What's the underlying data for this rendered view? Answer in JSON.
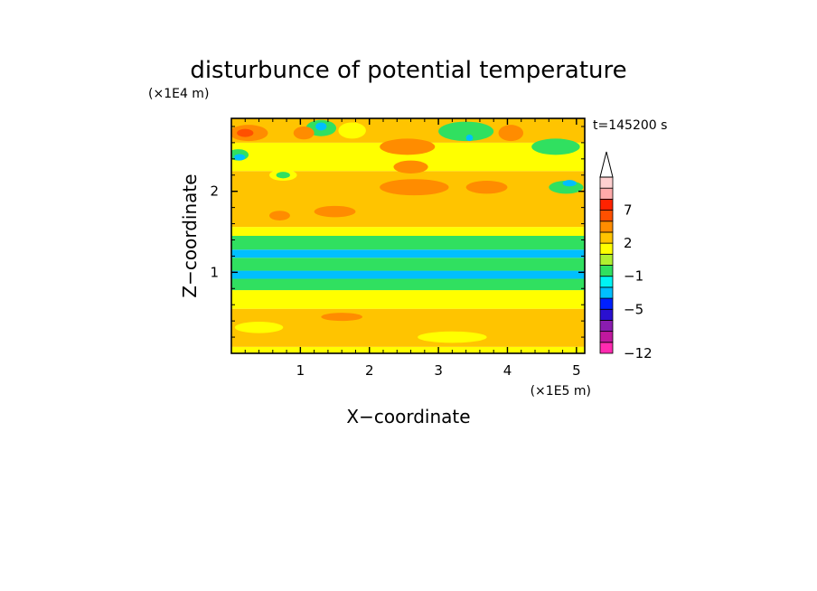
{
  "chart_data": {
    "type": "heatmap",
    "title": "disturbunce of potential temperature",
    "xlabel": "X−coordinate",
    "ylabel": "Z−coordinate",
    "x_unit": "(×1E5 m)",
    "y_unit": "(×1E4 m)",
    "time_label": "t=145200 s",
    "xlim": [
      0,
      5.12
    ],
    "ylim": [
      0,
      2.9
    ],
    "x_ticks": [
      {
        "value": 1,
        "label": "1"
      },
      {
        "value": 2,
        "label": "2"
      },
      {
        "value": 3,
        "label": "3"
      },
      {
        "value": 4,
        "label": "4"
      },
      {
        "value": 5,
        "label": "5"
      }
    ],
    "y_ticks": [
      {
        "value": 1,
        "label": "1"
      },
      {
        "value": 2,
        "label": "2"
      }
    ],
    "colorbar": {
      "levels_upper": [
        -12,
        -10,
        -8,
        -6,
        -5,
        -3,
        -2,
        -1,
        0,
        1,
        2,
        4,
        5,
        7,
        8,
        9
      ],
      "colors": [
        "#ff2ab0",
        "#c0189e",
        "#8a1cb0",
        "#2a10d0",
        "#0020ff",
        "#00bfff",
        "#00f4f4",
        "#30e060",
        "#b0f030",
        "#ffff00",
        "#ffc400",
        "#ff8c00",
        "#ff5000",
        "#ff2200",
        "#ffaaaa",
        "#ffd0d0"
      ],
      "tick_labels": [
        {
          "value": 7,
          "label": "7"
        },
        {
          "value": 2,
          "label": "2"
        },
        {
          "value": -1,
          "label": "−1"
        },
        {
          "value": -5,
          "label": "−5"
        },
        {
          "value": -12,
          "label": "−12"
        }
      ],
      "extend": "max"
    },
    "bands": [
      {
        "z_min": 0.0,
        "z_max": 0.08,
        "value": 0.4
      },
      {
        "z_min": 0.08,
        "z_max": 0.55,
        "value": 1.3
      },
      {
        "z_min": 0.55,
        "z_max": 0.78,
        "value": 0.3
      },
      {
        "z_min": 0.78,
        "z_max": 0.92,
        "value": -1.5
      },
      {
        "z_min": 0.92,
        "z_max": 1.02,
        "value": -3.5
      },
      {
        "z_min": 1.02,
        "z_max": 1.18,
        "value": -1.5
      },
      {
        "z_min": 1.18,
        "z_max": 1.28,
        "value": -3.5
      },
      {
        "z_min": 1.28,
        "z_max": 1.45,
        "value": -1.5
      },
      {
        "z_min": 1.45,
        "z_max": 1.56,
        "value": 0.3
      },
      {
        "z_min": 1.56,
        "z_max": 2.25,
        "value": 1.3
      },
      {
        "z_min": 2.25,
        "z_max": 2.6,
        "value": 0.3
      },
      {
        "z_min": 2.6,
        "z_max": 2.9,
        "value": 1.3
      }
    ],
    "blobs": [
      {
        "x": 0.25,
        "z": 2.72,
        "rx": 0.28,
        "rz": 0.1,
        "value": 3.0
      },
      {
        "x": 0.2,
        "z": 2.72,
        "rx": 0.12,
        "rz": 0.05,
        "value": 4.5
      },
      {
        "x": 0.1,
        "z": 2.45,
        "rx": 0.15,
        "rz": 0.07,
        "value": -1.5
      },
      {
        "x": 0.12,
        "z": 2.42,
        "rx": 0.08,
        "rz": 0.04,
        "value": -3.5
      },
      {
        "x": 1.3,
        "z": 2.78,
        "rx": 0.22,
        "rz": 0.1,
        "value": -1.5
      },
      {
        "x": 1.3,
        "z": 2.8,
        "rx": 0.08,
        "rz": 0.05,
        "value": -3.5
      },
      {
        "x": 1.05,
        "z": 2.72,
        "rx": 0.15,
        "rz": 0.08,
        "value": 3.0
      },
      {
        "x": 1.75,
        "z": 2.75,
        "rx": 0.2,
        "rz": 0.1,
        "value": 0.3
      },
      {
        "x": 3.4,
        "z": 2.74,
        "rx": 0.4,
        "rz": 0.12,
        "value": -1.5
      },
      {
        "x": 3.45,
        "z": 2.66,
        "rx": 0.05,
        "rz": 0.04,
        "value": -3.5
      },
      {
        "x": 4.05,
        "z": 2.72,
        "rx": 0.18,
        "rz": 0.1,
        "value": 3.0
      },
      {
        "x": 4.7,
        "z": 2.55,
        "rx": 0.35,
        "rz": 0.1,
        "value": -1.5
      },
      {
        "x": 2.55,
        "z": 2.55,
        "rx": 0.4,
        "rz": 0.1,
        "value": 3.0
      },
      {
        "x": 2.6,
        "z": 2.3,
        "rx": 0.25,
        "rz": 0.08,
        "value": 3.0
      },
      {
        "x": 2.65,
        "z": 2.05,
        "rx": 0.5,
        "rz": 0.1,
        "value": 3.0
      },
      {
        "x": 3.7,
        "z": 2.05,
        "rx": 0.3,
        "rz": 0.08,
        "value": 3.0
      },
      {
        "x": 0.7,
        "z": 1.7,
        "rx": 0.15,
        "rz": 0.06,
        "value": 3.0
      },
      {
        "x": 1.5,
        "z": 1.75,
        "rx": 0.3,
        "rz": 0.07,
        "value": 3.0
      },
      {
        "x": 0.75,
        "z": 2.2,
        "rx": 0.2,
        "rz": 0.07,
        "value": 0.3
      },
      {
        "x": 0.75,
        "z": 2.2,
        "rx": 0.1,
        "rz": 0.04,
        "value": -1.5
      },
      {
        "x": 4.85,
        "z": 2.05,
        "rx": 0.25,
        "rz": 0.08,
        "value": -1.5
      },
      {
        "x": 4.9,
        "z": 2.1,
        "rx": 0.1,
        "rz": 0.04,
        "value": -3.5
      },
      {
        "x": 0.4,
        "z": 0.32,
        "rx": 0.35,
        "rz": 0.07,
        "value": 0.3
      },
      {
        "x": 3.2,
        "z": 0.2,
        "rx": 0.5,
        "rz": 0.07,
        "value": 0.3
      },
      {
        "x": 1.6,
        "z": 0.45,
        "rx": 0.3,
        "rz": 0.05,
        "value": 3.0
      }
    ]
  }
}
